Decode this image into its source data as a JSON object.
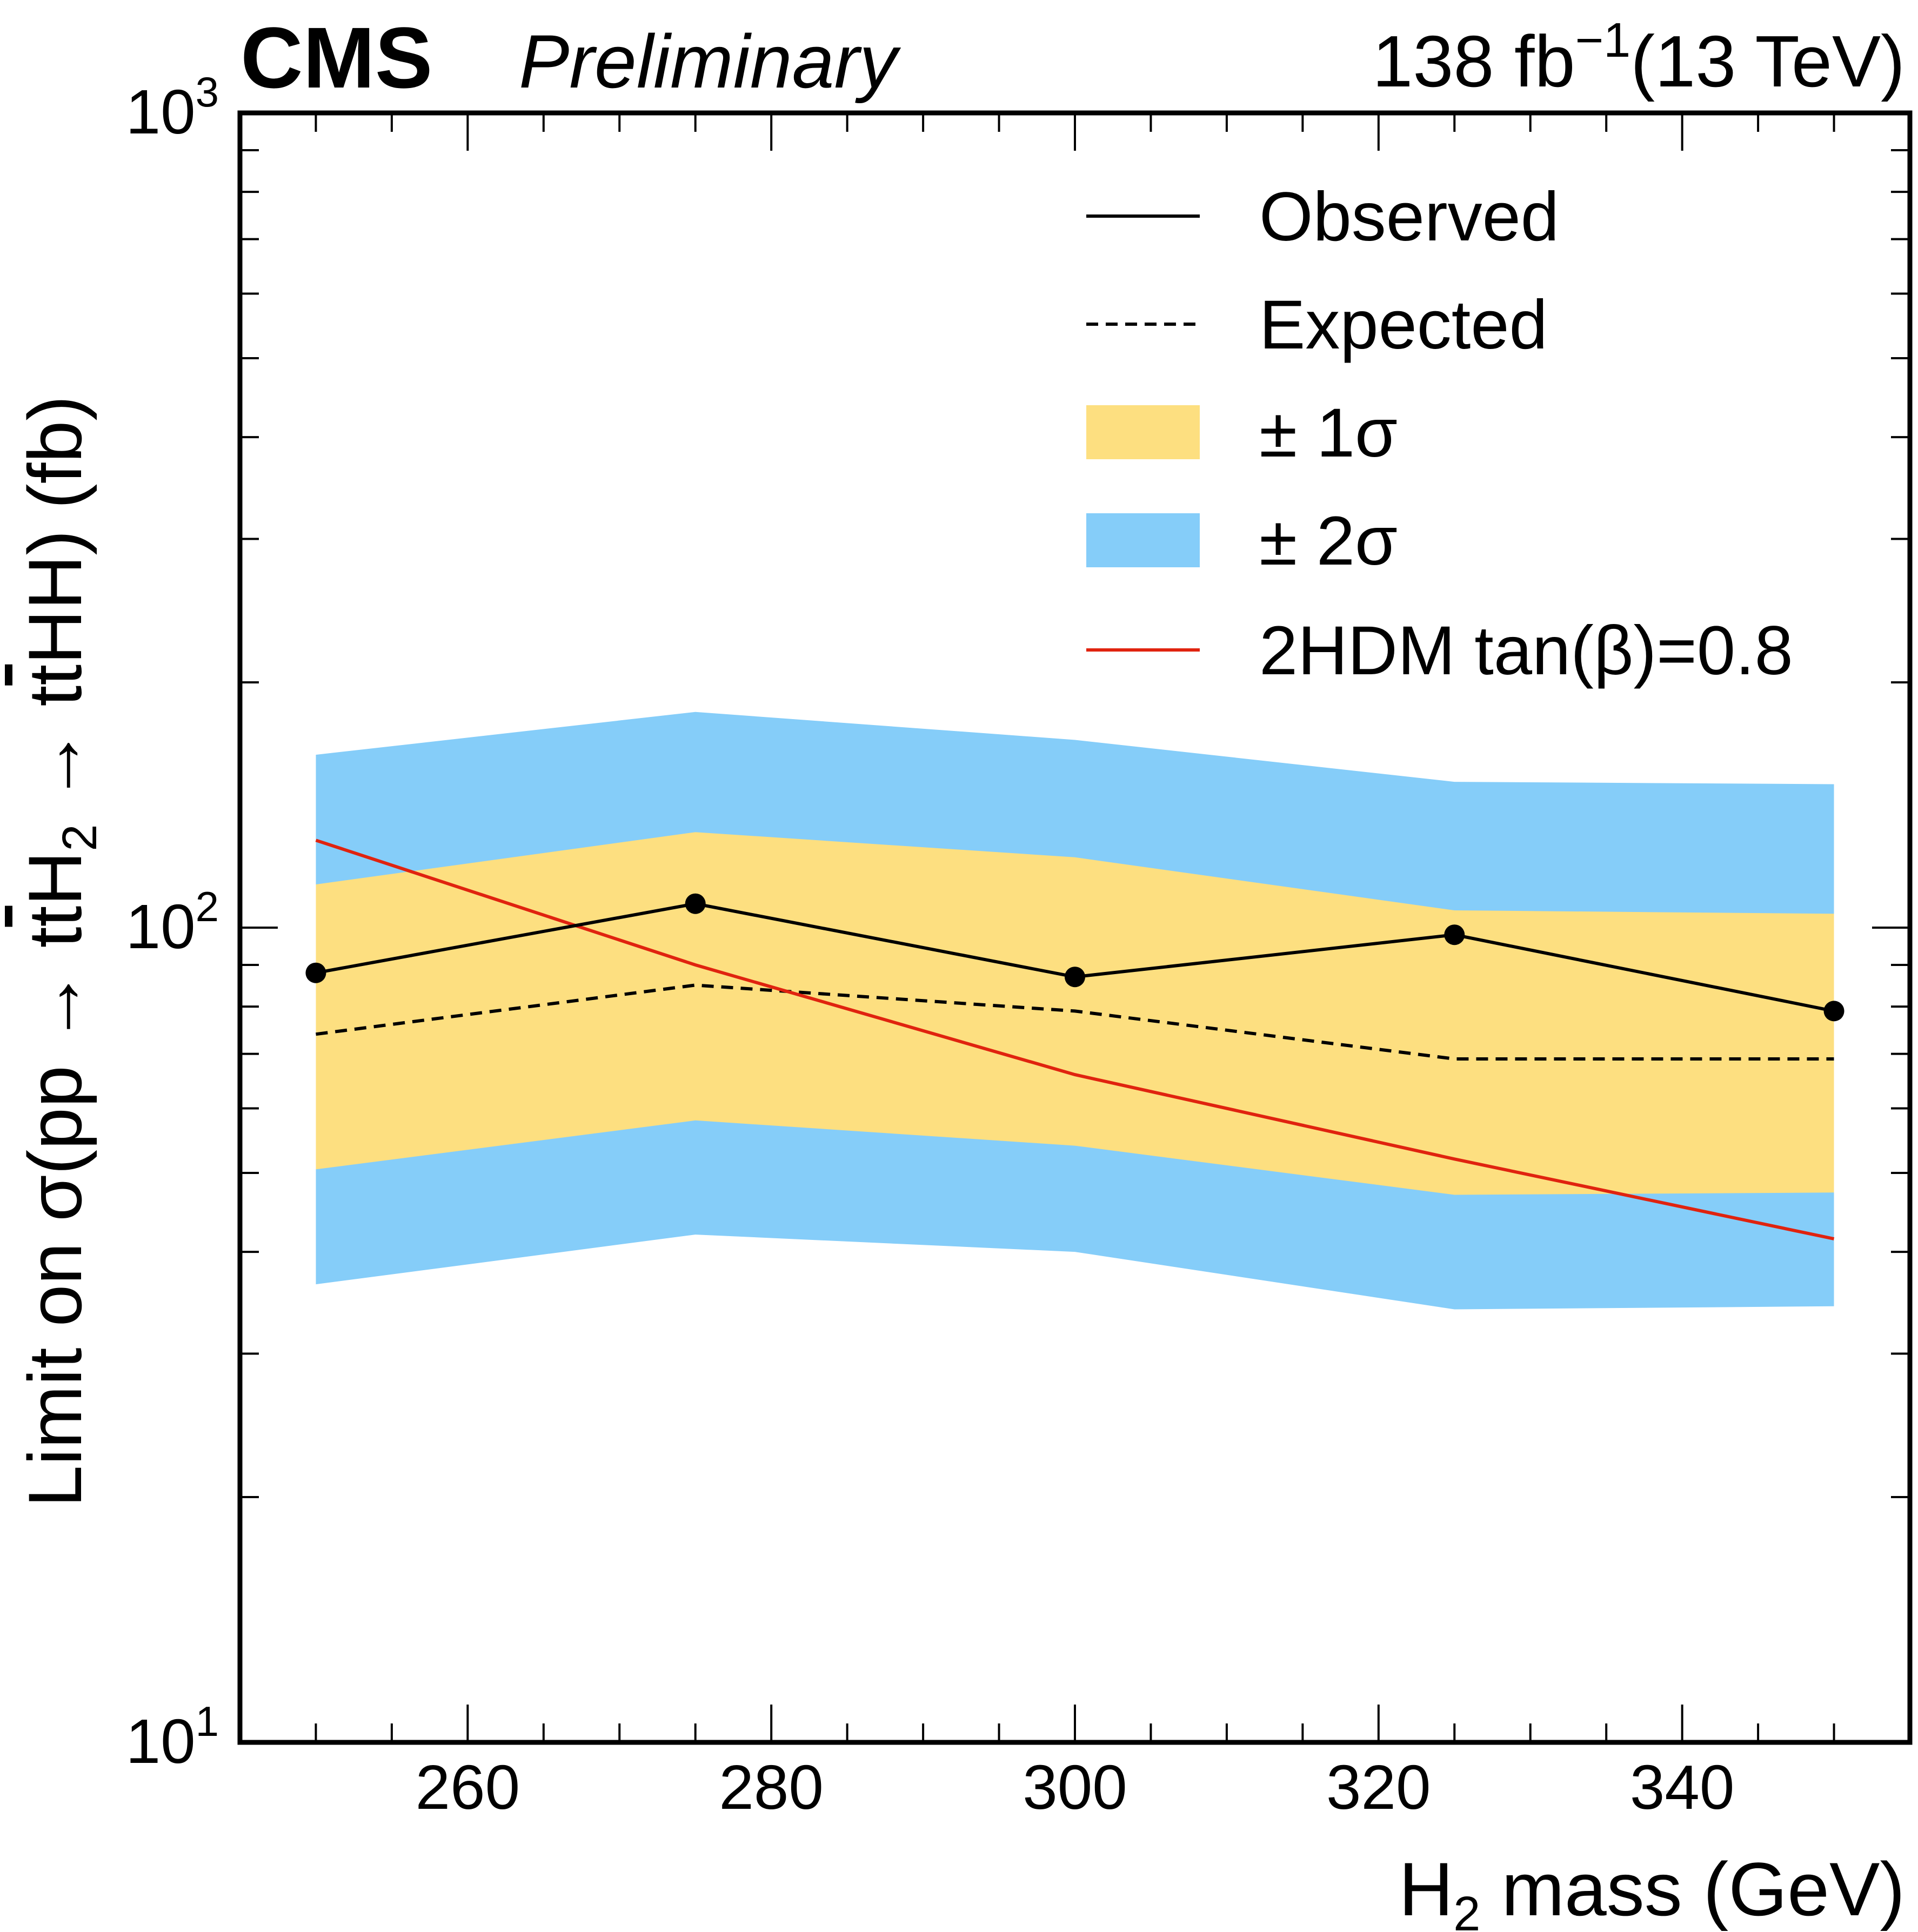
{
  "header": {
    "experiment": "CMS",
    "status": "Preliminary",
    "lumi_value": "138 fb",
    "lumi_exponent": "−1",
    "energy": "(13 TeV)"
  },
  "colors": {
    "band_1sigma": "#fddf80",
    "band_2sigma": "#85cdf9",
    "observed": "#000000",
    "expected": "#000000",
    "theory": "#e0230f"
  },
  "chart_data": {
    "type": "line",
    "title": "",
    "xlabel": {
      "main": "H",
      "sub": "2",
      "rest": " mass (GeV)"
    },
    "ylabel": {
      "p1": "Limit on σ(pp  →  t",
      "tbar": "t",
      "p2": "H",
      "sub": "2",
      "p3": "  →  t",
      "tbar2": "t",
      "p4": "HH)  (fb)"
    },
    "x_scale": "linear",
    "y_scale": "log",
    "xlim": [
      245,
      355
    ],
    "ylim": [
      10,
      1000
    ],
    "x_ticks": [
      260,
      280,
      300,
      320,
      340
    ],
    "x_tick_labels": [
      "260",
      "280",
      "300",
      "320",
      "340"
    ],
    "y_decades": [
      {
        "value": 10,
        "base": "10",
        "exp": "1"
      },
      {
        "value": 100,
        "base": "10",
        "exp": "2"
      },
      {
        "value": 1000,
        "base": "10",
        "exp": "3"
      }
    ],
    "x": [
      250,
      275,
      300,
      325,
      350
    ],
    "series": [
      {
        "name": "Observed",
        "style": "solid-markers",
        "values": [
          88,
          107,
          87,
          98,
          79
        ]
      },
      {
        "name": "Expected",
        "style": "dashed",
        "values": [
          74,
          85,
          79,
          69,
          69
        ]
      },
      {
        "name": "± 1σ",
        "style": "band",
        "low": [
          50.5,
          58,
          54,
          47,
          47.3
        ],
        "high": [
          113,
          131,
          122,
          105,
          104
        ]
      },
      {
        "name": "± 2σ",
        "style": "band",
        "low": [
          36.5,
          42,
          40,
          34,
          34.3
        ],
        "high": [
          163,
          184,
          170,
          151,
          150
        ]
      },
      {
        "name": "2HDM tan(β)=0.8",
        "style": "solid-red",
        "values": [
          128,
          90,
          66,
          52,
          41.5
        ]
      }
    ],
    "legend": {
      "position": "top-right",
      "entries": [
        {
          "label": "Observed",
          "kind": "line-solid"
        },
        {
          "label": "Expected",
          "kind": "line-dashed"
        },
        {
          "label": "± 1σ",
          "kind": "band-1"
        },
        {
          "label": "± 2σ",
          "kind": "band-2"
        },
        {
          "label": "2HDM tan(β)=0.8",
          "kind": "line-red"
        }
      ]
    }
  }
}
